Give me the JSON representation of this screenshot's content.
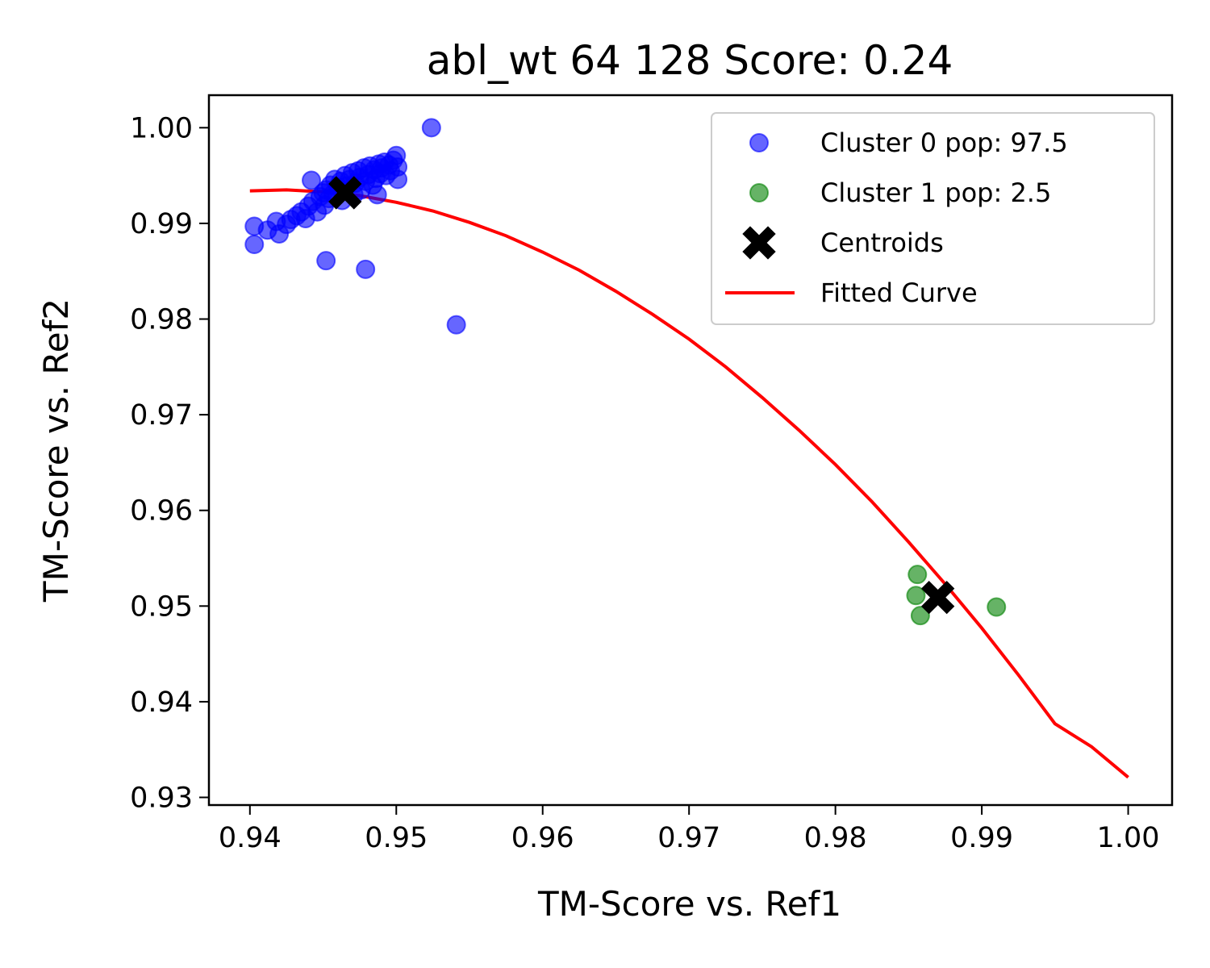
{
  "chart_data": {
    "type": "scatter",
    "title": "abl_wt 64 128 Score: 0.24",
    "xlabel": "TM-Score vs. Ref1",
    "ylabel": "TM-Score vs. Ref2",
    "xlim": [
      0.9372,
      1.003
    ],
    "ylim": [
      0.9292,
      1.0034
    ],
    "x_ticks": [
      0.94,
      0.95,
      0.96,
      0.97,
      0.98,
      0.99,
      1.0
    ],
    "x_tick_labels": [
      "0.94",
      "0.95",
      "0.96",
      "0.97",
      "0.98",
      "0.99",
      "1.00"
    ],
    "y_ticks": [
      0.93,
      0.94,
      0.95,
      0.96,
      0.97,
      0.98,
      0.99,
      1.0
    ],
    "y_tick_labels": [
      "0.93",
      "0.94",
      "0.95",
      "0.96",
      "0.97",
      "0.98",
      "0.99",
      "1.00"
    ],
    "grid": false,
    "legend_position": "top-right",
    "series": [
      {
        "name": "Cluster 0 pop: 97.5",
        "kind": "scatter",
        "marker": "circle",
        "color": "#0000ff",
        "points": [
          [
            0.9403,
            0.9897
          ],
          [
            0.9403,
            0.9878
          ],
          [
            0.9412,
            0.9893
          ],
          [
            0.9418,
            0.9902
          ],
          [
            0.942,
            0.9889
          ],
          [
            0.9425,
            0.9899
          ],
          [
            0.9428,
            0.9904
          ],
          [
            0.9432,
            0.9908
          ],
          [
            0.9435,
            0.9912
          ],
          [
            0.9438,
            0.9905
          ],
          [
            0.944,
            0.9918
          ],
          [
            0.9442,
            0.9945
          ],
          [
            0.9443,
            0.9923
          ],
          [
            0.9446,
            0.9912
          ],
          [
            0.9448,
            0.9928
          ],
          [
            0.945,
            0.9932
          ],
          [
            0.9451,
            0.9919
          ],
          [
            0.9452,
            0.9935
          ],
          [
            0.9454,
            0.9926
          ],
          [
            0.9455,
            0.994
          ],
          [
            0.9457,
            0.9931
          ],
          [
            0.9458,
            0.9946
          ],
          [
            0.946,
            0.9938
          ],
          [
            0.9462,
            0.9944
          ],
          [
            0.9463,
            0.9924
          ],
          [
            0.9465,
            0.995
          ],
          [
            0.9466,
            0.9939
          ],
          [
            0.9468,
            0.9946
          ],
          [
            0.947,
            0.9953
          ],
          [
            0.9471,
            0.993
          ],
          [
            0.9472,
            0.9942
          ],
          [
            0.9474,
            0.9955
          ],
          [
            0.9475,
            0.9948
          ],
          [
            0.9476,
            0.9935
          ],
          [
            0.9478,
            0.9958
          ],
          [
            0.9479,
            0.9944
          ],
          [
            0.9481,
            0.9951
          ],
          [
            0.9482,
            0.996
          ],
          [
            0.9484,
            0.994
          ],
          [
            0.9485,
            0.9956
          ],
          [
            0.9486,
            0.9947
          ],
          [
            0.9488,
            0.9962
          ],
          [
            0.9489,
            0.9952
          ],
          [
            0.949,
            0.9958
          ],
          [
            0.9492,
            0.9964
          ],
          [
            0.9493,
            0.995
          ],
          [
            0.9495,
            0.9961
          ],
          [
            0.9496,
            0.9955
          ],
          [
            0.9498,
            0.9966
          ],
          [
            0.95,
            0.9971
          ],
          [
            0.9501,
            0.9946
          ],
          [
            0.9501,
            0.9959
          ],
          [
            0.9487,
            0.993
          ],
          [
            0.9452,
            0.9861
          ],
          [
            0.9479,
            0.9852
          ],
          [
            0.9524,
            1.0
          ],
          [
            0.9541,
            0.9794
          ]
        ]
      },
      {
        "name": "Cluster 1 pop: 2.5",
        "kind": "scatter",
        "marker": "circle",
        "color": "#008000",
        "points": [
          [
            0.9856,
            0.9533
          ],
          [
            0.9855,
            0.9511
          ],
          [
            0.9858,
            0.949
          ],
          [
            0.991,
            0.9499
          ]
        ]
      },
      {
        "name": "Centroids",
        "kind": "scatter",
        "marker": "x",
        "color": "#000000",
        "points": [
          [
            0.9465,
            0.9932
          ],
          [
            0.987,
            0.9509
          ]
        ]
      },
      {
        "name": "Fitted Curve",
        "kind": "line",
        "color": "#ff0000",
        "x": [
          0.94,
          0.9425,
          0.945,
          0.9475,
          0.95,
          0.9525,
          0.955,
          0.9575,
          0.96,
          0.9625,
          0.965,
          0.9675,
          0.97,
          0.9725,
          0.975,
          0.9775,
          0.98,
          0.9825,
          0.985,
          0.9875,
          0.99,
          0.9925,
          0.995,
          0.9975,
          1.0
        ],
        "y": [
          0.9934,
          0.9935,
          0.9933,
          0.9929,
          0.9922,
          0.9913,
          0.9901,
          0.9887,
          0.987,
          0.9851,
          0.9829,
          0.9805,
          0.9779,
          0.975,
          0.9718,
          0.9684,
          0.9648,
          0.9609,
          0.9567,
          0.9523,
          0.9477,
          0.9428,
          0.9377,
          0.9353,
          0.9321
        ]
      }
    ]
  }
}
